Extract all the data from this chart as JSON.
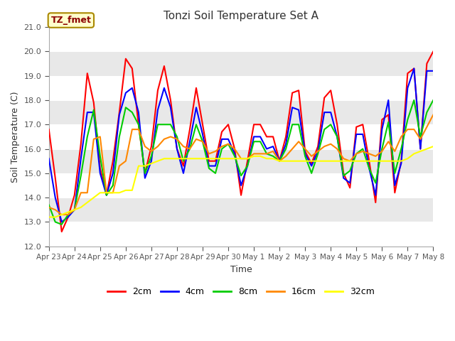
{
  "title": "Tonzi Soil Temperature Set A",
  "xlabel": "Time",
  "ylabel": "Soil Temperature (C)",
  "annotation": "TZ_fmet",
  "ylim": [
    12.0,
    21.0
  ],
  "yticks": [
    12.0,
    13.0,
    14.0,
    15.0,
    16.0,
    17.0,
    18.0,
    19.0,
    20.0,
    21.0
  ],
  "x_labels": [
    "Apr 23",
    "Apr 24",
    "Apr 25",
    "Apr 26",
    "Apr 27",
    "Apr 28",
    "Apr 29",
    "Apr 30",
    "May 1",
    "May 2",
    "May 3",
    "May 4",
    "May 5",
    "May 6",
    "May 7",
    "May 8"
  ],
  "colors": {
    "2cm": "#FF0000",
    "4cm": "#0000FF",
    "8cm": "#00CC00",
    "16cm": "#FF8800",
    "32cm": "#FFFF00"
  },
  "legend_labels": [
    "2cm",
    "4cm",
    "8cm",
    "16cm",
    "32cm"
  ],
  "fig_bg": "#FFFFFF",
  "plot_bg": "#FFFFFF",
  "band_color_light": "#E8E8E8",
  "annotation_bg": "#FFFFCC",
  "annotation_border": "#AA8800",
  "line_width": 1.5,
  "t": [
    0,
    0.25,
    0.5,
    0.75,
    1.0,
    1.25,
    1.5,
    1.75,
    2.0,
    2.25,
    2.5,
    2.75,
    3.0,
    3.25,
    3.5,
    3.75,
    4.0,
    4.25,
    4.5,
    4.75,
    5.0,
    5.25,
    5.5,
    5.75,
    6.0,
    6.25,
    6.5,
    6.75,
    7.0,
    7.25,
    7.5,
    7.75,
    8.0,
    8.25,
    8.5,
    8.75,
    9.0,
    9.25,
    9.5,
    9.75,
    10.0,
    10.25,
    10.5,
    10.75,
    11.0,
    11.25,
    11.5,
    11.75,
    12.0,
    12.25,
    12.5,
    12.75,
    13.0,
    13.25,
    13.5,
    13.75,
    14.0,
    14.25,
    14.5,
    14.75,
    15.0
  ],
  "data_2cm": [
    16.8,
    14.8,
    12.6,
    13.2,
    14.1,
    16.2,
    19.1,
    17.9,
    15.2,
    14.1,
    15.5,
    17.5,
    19.7,
    19.3,
    17.0,
    15.0,
    16.1,
    18.4,
    19.4,
    18.0,
    16.0,
    15.3,
    16.8,
    18.5,
    17.0,
    15.5,
    15.5,
    16.7,
    17.0,
    16.0,
    14.1,
    15.5,
    17.0,
    17.0,
    16.5,
    16.5,
    15.5,
    16.5,
    18.3,
    18.4,
    15.9,
    15.4,
    16.1,
    18.1,
    18.4,
    17.0,
    15.0,
    14.4,
    16.9,
    17.0,
    15.5,
    13.8,
    17.2,
    17.4,
    14.2,
    15.5,
    19.1,
    19.3,
    16.0,
    19.5,
    20.0
  ],
  "data_4cm": [
    15.6,
    14.0,
    13.0,
    13.2,
    13.5,
    15.6,
    17.5,
    17.5,
    15.0,
    14.1,
    15.0,
    17.4,
    18.3,
    18.5,
    17.5,
    14.8,
    15.5,
    17.6,
    18.5,
    17.7,
    16.0,
    15.0,
    16.3,
    17.7,
    16.6,
    15.3,
    15.3,
    16.4,
    16.4,
    15.8,
    14.5,
    15.3,
    16.5,
    16.5,
    16.0,
    16.1,
    15.5,
    16.2,
    17.7,
    17.6,
    15.8,
    15.3,
    15.9,
    17.5,
    17.5,
    16.5,
    14.8,
    14.6,
    16.6,
    16.6,
    15.2,
    14.1,
    16.8,
    18.0,
    14.5,
    15.4,
    18.5,
    19.3,
    16.0,
    19.2,
    19.2
  ],
  "data_8cm": [
    13.7,
    13.0,
    12.9,
    13.3,
    13.5,
    14.9,
    16.5,
    17.6,
    15.7,
    14.1,
    14.5,
    16.5,
    17.7,
    17.5,
    17.0,
    15.0,
    15.7,
    17.0,
    17.0,
    17.0,
    16.5,
    15.5,
    16.0,
    17.0,
    16.3,
    15.2,
    15.0,
    16.0,
    16.2,
    15.7,
    14.9,
    15.3,
    16.3,
    16.3,
    15.8,
    15.7,
    15.5,
    16.0,
    17.0,
    17.0,
    15.7,
    15.0,
    15.8,
    16.8,
    17.0,
    16.5,
    14.9,
    15.1,
    15.8,
    16.0,
    15.2,
    14.6,
    16.0,
    17.1,
    15.0,
    16.0,
    17.2,
    18.0,
    16.5,
    17.5,
    18.0
  ],
  "data_16cm": [
    13.6,
    13.5,
    13.3,
    13.3,
    13.5,
    14.2,
    14.2,
    16.4,
    16.5,
    14.2,
    14.2,
    15.3,
    15.5,
    16.8,
    16.8,
    16.1,
    15.9,
    16.1,
    16.4,
    16.5,
    16.4,
    16.1,
    16.0,
    16.4,
    16.3,
    15.8,
    15.9,
    16.1,
    16.2,
    16.0,
    15.6,
    15.6,
    15.8,
    15.8,
    15.8,
    15.9,
    15.5,
    15.7,
    16.0,
    16.3,
    16.0,
    15.7,
    15.9,
    16.1,
    16.2,
    16.0,
    15.6,
    15.5,
    15.8,
    15.9,
    15.8,
    15.7,
    15.9,
    16.3,
    15.9,
    16.5,
    16.8,
    16.8,
    16.4,
    16.9,
    17.4
  ],
  "data_32cm": [
    13.2,
    13.2,
    13.3,
    13.4,
    13.5,
    13.6,
    13.8,
    14.0,
    14.2,
    14.2,
    14.2,
    14.2,
    14.3,
    14.3,
    15.3,
    15.3,
    15.4,
    15.5,
    15.6,
    15.6,
    15.6,
    15.6,
    15.6,
    15.6,
    15.6,
    15.6,
    15.6,
    15.6,
    15.6,
    15.6,
    15.6,
    15.6,
    15.7,
    15.7,
    15.6,
    15.6,
    15.5,
    15.5,
    15.5,
    15.5,
    15.5,
    15.5,
    15.5,
    15.5,
    15.5,
    15.5,
    15.5,
    15.5,
    15.5,
    15.5,
    15.5,
    15.5,
    15.5,
    15.5,
    15.5,
    15.5,
    15.6,
    15.8,
    15.9,
    16.0,
    16.1
  ]
}
